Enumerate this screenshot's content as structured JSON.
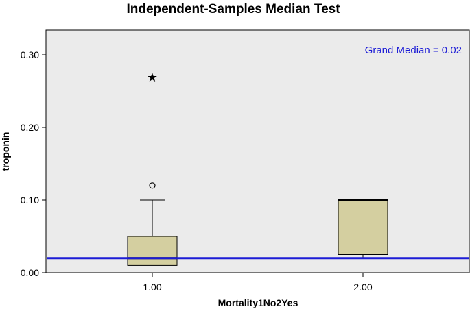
{
  "chart_data": {
    "type": "boxplot",
    "title": "Independent-Samples Median Test",
    "xlabel": "Mortality1No2Yes",
    "ylabel": "troponin",
    "ylim": [
      0,
      0.33
    ],
    "yticks": [
      {
        "value": 0.0,
        "label": "0.00"
      },
      {
        "value": 0.1,
        "label": "0.10"
      },
      {
        "value": 0.2,
        "label": "0.20"
      },
      {
        "value": 0.3,
        "label": "0.30"
      }
    ],
    "categories": [
      "1.00",
      "2.00"
    ],
    "boxes": [
      {
        "category": "1.00",
        "min": 0.01,
        "q1": 0.01,
        "median": 0.02,
        "q3": 0.05,
        "max": 0.1,
        "outliers": [
          {
            "value": 0.12,
            "marker": "circle"
          }
        ],
        "extremes": [
          {
            "value": 0.27,
            "marker": "star"
          }
        ]
      },
      {
        "category": "2.00",
        "min": 0.02,
        "q1": 0.025,
        "median": 0.1,
        "q3": 0.1,
        "max": 0.1,
        "outliers": [],
        "extremes": []
      }
    ],
    "reference_line": {
      "label": "Grand Median = 0.02",
      "value": 0.02,
      "color": "#1c1cd6"
    },
    "box_fill": "#d4cfa0",
    "plot_background": "#ebebeb",
    "grid": false,
    "legend": "none"
  }
}
